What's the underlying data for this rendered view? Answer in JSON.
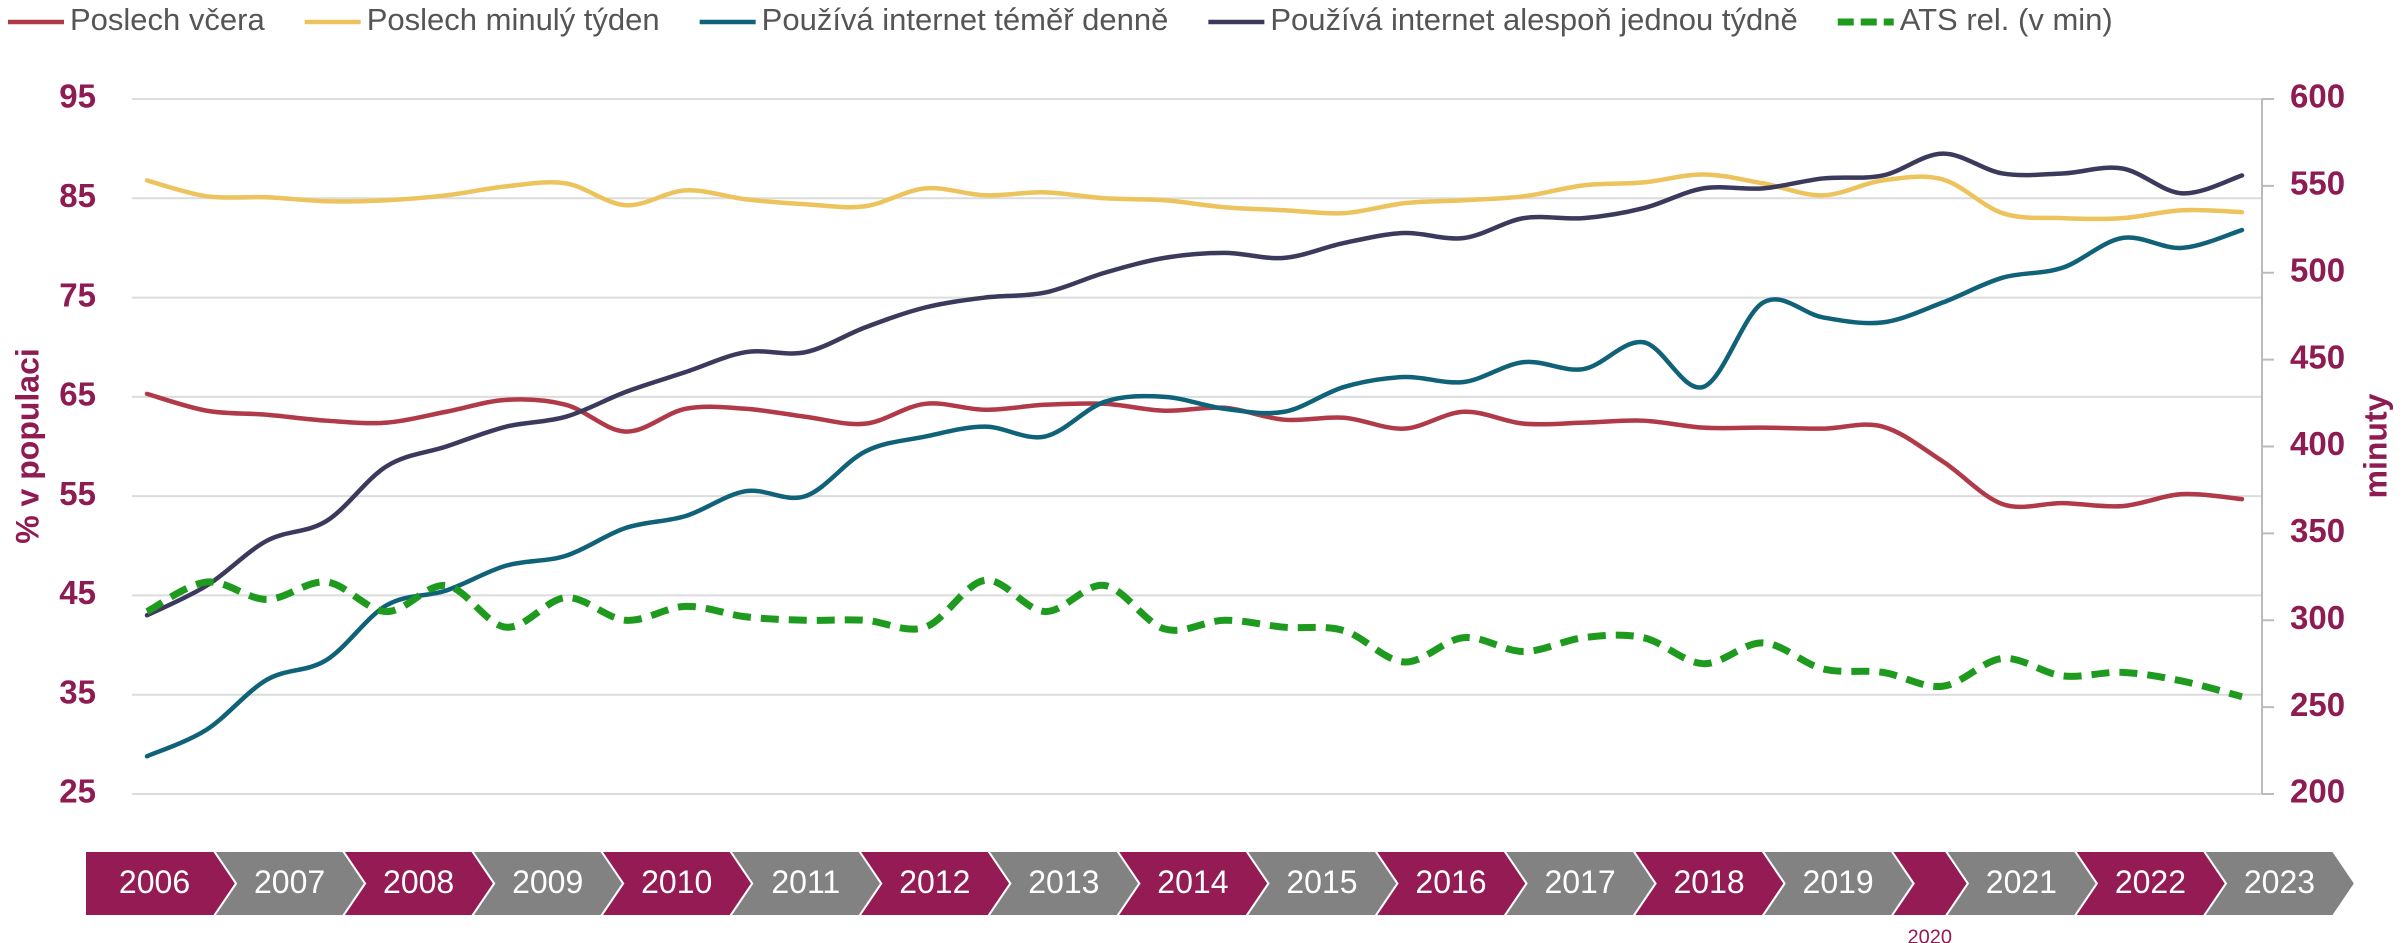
{
  "chart_data": {
    "type": "line",
    "categories": [
      null,
      null,
      null,
      null,
      null,
      null,
      null,
      null,
      null,
      null,
      null,
      null,
      null,
      null,
      null,
      null,
      null,
      null,
      null,
      null,
      null,
      null,
      null,
      null,
      null,
      null,
      null,
      null,
      null,
      null,
      null,
      null,
      null,
      null,
      null,
      null
    ],
    "series": [
      {
        "name": "Poslech včera",
        "color": "#b03a48",
        "values": [
          65.3,
          63.6,
          63.2,
          62.6,
          62.4,
          63.5,
          64.7,
          64.2,
          61.5,
          63.8,
          63.8,
          63.0,
          62.3,
          64.3,
          63.7,
          64.2,
          64.3,
          63.6,
          63.9,
          62.7,
          62.9,
          61.8,
          63.5,
          62.3,
          62.4,
          62.6,
          61.9,
          61.9,
          61.8,
          62.0,
          58.5,
          54.2,
          54.3,
          54.0,
          55.2,
          54.7
        ]
      },
      {
        "name": "Poslech minulý týden",
        "color": "#ecc35c",
        "values": [
          86.8,
          85.2,
          85.1,
          84.7,
          84.8,
          85.3,
          86.2,
          86.5,
          84.3,
          85.8,
          84.9,
          84.4,
          84.2,
          86.0,
          85.3,
          85.6,
          85.0,
          84.8,
          84.1,
          83.8,
          83.5,
          84.5,
          84.8,
          85.2,
          86.3,
          86.6,
          87.4,
          86.5,
          85.3,
          86.8,
          86.9,
          83.5,
          83.0,
          83.0,
          83.8,
          83.6
        ]
      },
      {
        "name": "Používá internet téměř denně",
        "color": "#0f6278",
        "values": [
          28.8,
          31.5,
          36.5,
          38.5,
          44.0,
          45.5,
          48.0,
          49.0,
          51.8,
          53.0,
          55.5,
          55.0,
          59.5,
          61.0,
          62.0,
          61.0,
          64.5,
          65.0,
          63.8,
          63.5,
          66.0,
          67.0,
          66.5,
          68.5,
          67.8,
          70.5,
          66.0,
          74.5,
          73.0,
          72.5,
          74.5,
          77.0,
          78.0,
          81.0,
          80.0,
          81.8
        ]
      },
      {
        "name": "Používá internet alespoň jednou týdně",
        "color": "#3b3a5c",
        "values": [
          43.0,
          46.0,
          50.5,
          52.5,
          58.0,
          60.0,
          62.0,
          63.0,
          65.5,
          67.5,
          69.5,
          69.5,
          72.0,
          74.0,
          75.0,
          75.5,
          77.5,
          79.0,
          79.5,
          79.0,
          80.5,
          81.5,
          81.0,
          83.0,
          83.0,
          84.0,
          86.0,
          86.0,
          87.0,
          87.3,
          89.5,
          87.5,
          87.5,
          88.0,
          85.5,
          87.3
        ]
      },
      {
        "name": "ATS rel. (v min)",
        "color": "#1e9b1e",
        "dashed": true,
        "axis": "y2",
        "values": [
          305,
          322,
          312,
          322,
          305,
          320,
          296,
          313,
          300,
          308,
          302,
          300,
          300,
          296,
          323,
          305,
          320,
          295,
          300,
          296,
          294,
          276,
          290,
          282,
          290,
          290,
          275,
          287,
          272,
          270,
          262,
          278,
          268,
          270,
          265,
          256
        ]
      }
    ],
    "ylabel": "% v populaci",
    "y2label": "minuty",
    "ylim": [
      25,
      95
    ],
    "yticks": [
      25,
      35,
      45,
      55,
      65,
      75,
      85,
      95
    ],
    "y2lim": [
      200,
      600
    ],
    "y2ticks": [
      200,
      250,
      300,
      350,
      400,
      450,
      500,
      550,
      600
    ],
    "grid": true,
    "legend": "top",
    "timeline": [
      {
        "label": "2006"
      },
      {
        "label": "2007"
      },
      {
        "label": "2008"
      },
      {
        "label": "2009"
      },
      {
        "label": "2010"
      },
      {
        "label": "2011"
      },
      {
        "label": "2012"
      },
      {
        "label": "2013"
      },
      {
        "label": "2014"
      },
      {
        "label": "2015"
      },
      {
        "label": "2016"
      },
      {
        "label": "2017"
      },
      {
        "label": "2018"
      },
      {
        "label": "2019"
      },
      {
        "label": "2020",
        "label_below": true
      },
      {
        "label": "2021"
      },
      {
        "label": "2022"
      },
      {
        "label": "2023"
      }
    ],
    "timeline_colors": [
      "#951b54",
      "#828282"
    ]
  }
}
